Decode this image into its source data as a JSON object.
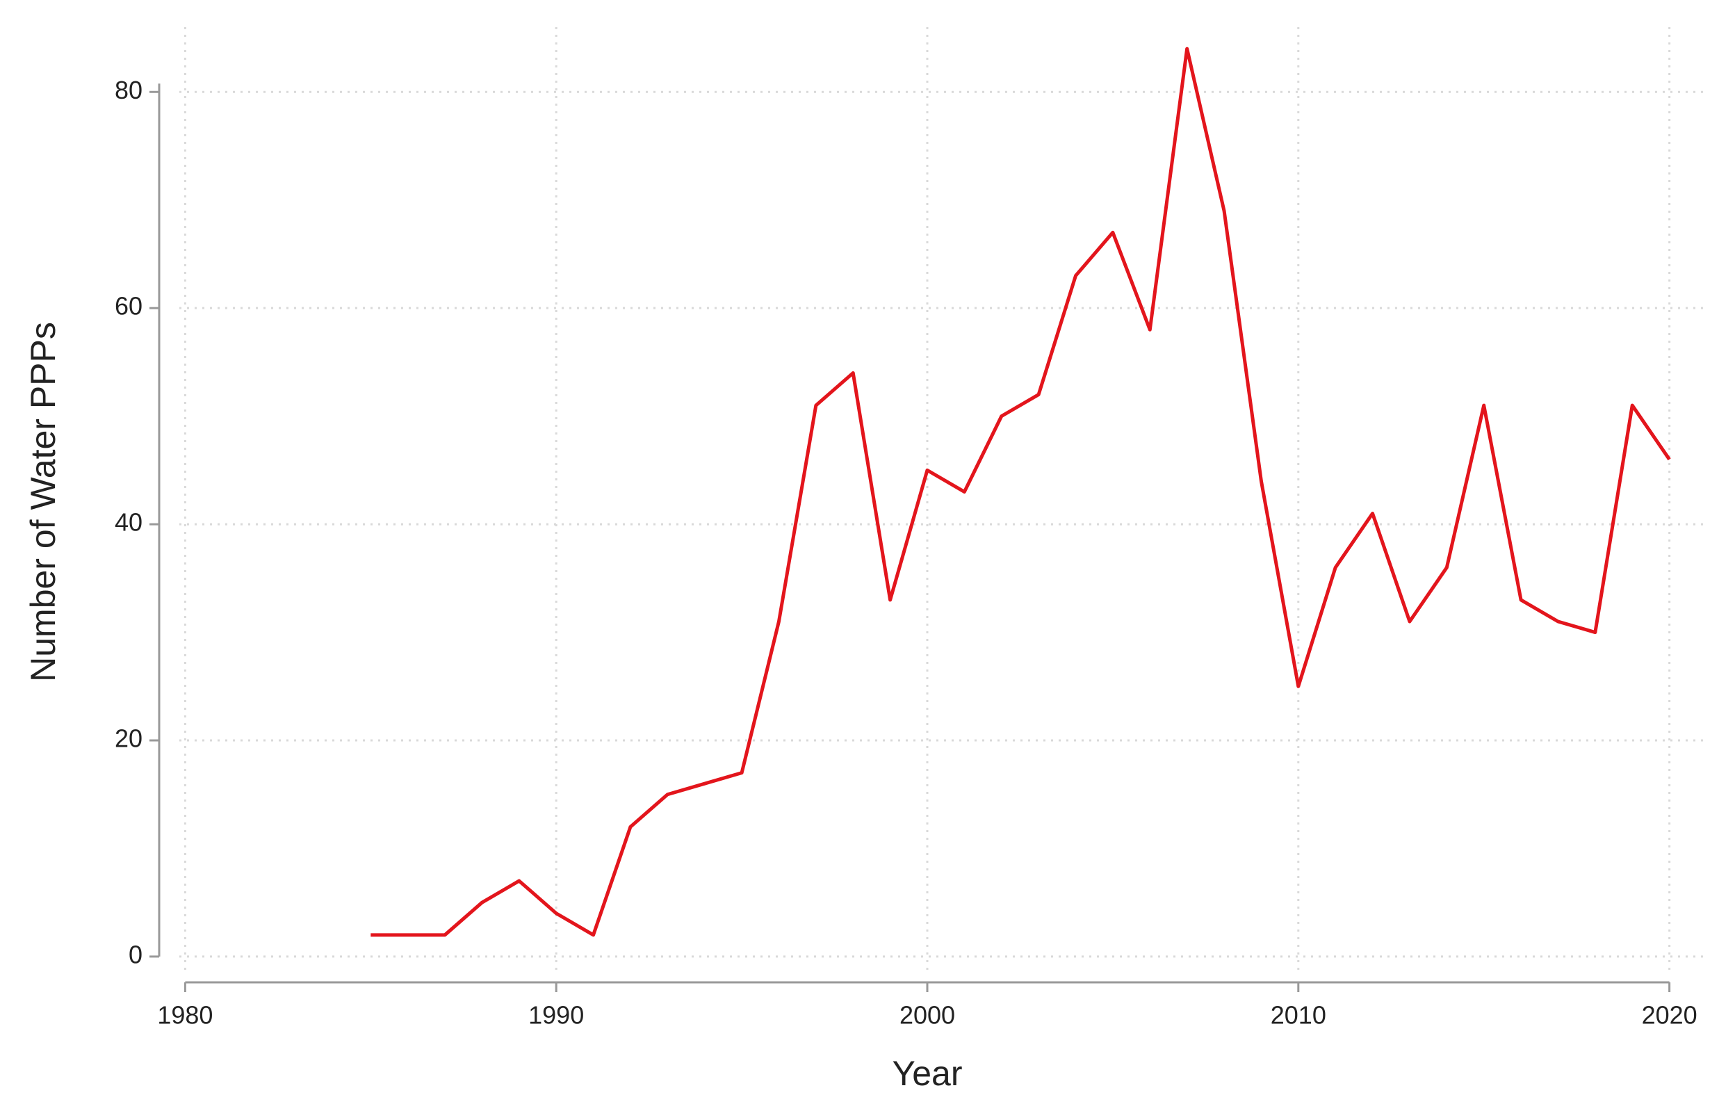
{
  "chart_data": {
    "type": "line",
    "x_label": "Year",
    "y_label": "Number of Water PPPs",
    "x": [
      1985,
      1986,
      1987,
      1988,
      1989,
      1990,
      1991,
      1992,
      1993,
      1994,
      1995,
      1996,
      1997,
      1998,
      1999,
      2000,
      2001,
      2002,
      2003,
      2004,
      2005,
      2006,
      2007,
      2008,
      2009,
      2010,
      2011,
      2012,
      2013,
      2014,
      2015,
      2016,
      2017,
      2018,
      2019,
      2020
    ],
    "series": [
      {
        "name": "Number of Water PPPs",
        "color": "#e3151c",
        "values": [
          2,
          2,
          2,
          5,
          7,
          4,
          2,
          12,
          15,
          16,
          17,
          31,
          51,
          54,
          33,
          45,
          43,
          50,
          52,
          63,
          67,
          58,
          84,
          69,
          44,
          25,
          36,
          41,
          31,
          36,
          51,
          33,
          31,
          30,
          51,
          46
        ]
      }
    ],
    "xlim": [
      1979,
      2021
    ],
    "xticks": [
      1980,
      1990,
      2000,
      2010,
      2020
    ],
    "ylim": [
      -2,
      86
    ],
    "yticks": [
      0,
      20,
      40,
      60,
      80
    ],
    "grid": true
  }
}
